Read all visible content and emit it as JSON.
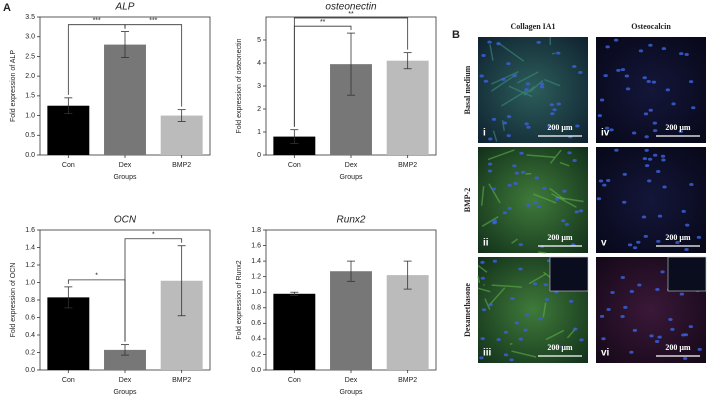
{
  "panel_a_label": "A",
  "chart_data": [
    {
      "type": "bar",
      "title": "ALP",
      "ylabel": "Fold expression of ALP",
      "xlabel": "Groups",
      "categories": [
        "Con",
        "Dex",
        "BMP2"
      ],
      "values": [
        1.25,
        2.8,
        1.0
      ],
      "errors": [
        0.2,
        0.33,
        0.15
      ],
      "colors": [
        "#000000",
        "#777777",
        "#bbbbbb"
      ],
      "ylim": [
        0,
        3.5
      ],
      "yticks": [
        {
          "value": 0,
          "label": "0.0"
        },
        0.5,
        {
          "value": 1,
          "label": "1.0"
        },
        1.5,
        {
          "value": 2,
          "label": "2.0"
        },
        2.5,
        {
          "value": 3,
          "label": "3.0"
        },
        3.5
      ],
      "significance": [
        {
          "between": [
            "Con",
            "Dex"
          ],
          "label": "***"
        },
        {
          "between": [
            "Dex",
            "BMP2"
          ],
          "label": "***"
        }
      ]
    },
    {
      "type": "bar",
      "title": "osteonectin",
      "ylabel": "Fold expression of osteonectin",
      "xlabel": "Groups",
      "categories": [
        "Con",
        "Dex",
        "BMP2"
      ],
      "values": [
        0.8,
        3.95,
        4.1
      ],
      "errors": [
        0.3,
        1.35,
        0.35
      ],
      "colors": [
        "#000000",
        "#777777",
        "#bbbbbb"
      ],
      "ylim": [
        0,
        6
      ],
      "yticks": [
        0,
        1,
        2,
        3,
        4,
        5
      ],
      "significance": [
        {
          "between": [
            "Con",
            "Dex"
          ],
          "label": "**"
        },
        {
          "between": [
            "Con",
            "BMP2"
          ],
          "label": "**"
        }
      ]
    },
    {
      "type": "bar",
      "title": "OCN",
      "ylabel": "Fold expression of OCN",
      "xlabel": "Groups",
      "categories": [
        "Con",
        "Dex",
        "BMP2"
      ],
      "values": [
        0.83,
        0.23,
        1.02
      ],
      "errors": [
        0.12,
        0.06,
        0.4
      ],
      "colors": [
        "#000000",
        "#777777",
        "#bbbbbb"
      ],
      "ylim": [
        0,
        1.6
      ],
      "yticks": [
        {
          "value": 0,
          "label": "0.0"
        },
        0.2,
        0.4,
        0.6,
        0.8,
        {
          "value": 1,
          "label": "1.0"
        },
        1.2,
        1.4,
        1.6
      ],
      "significance": [
        {
          "between": [
            "Con",
            "Dex"
          ],
          "label": "*"
        },
        {
          "between": [
            "Dex",
            "BMP2"
          ],
          "label": "*"
        }
      ]
    },
    {
      "type": "bar",
      "title": "Runx2",
      "ylabel": "Fold expression of Runx2",
      "xlabel": "Groups",
      "categories": [
        "Con",
        "Dex",
        "BMP2"
      ],
      "values": [
        0.98,
        1.27,
        1.22
      ],
      "errors": [
        0.02,
        0.13,
        0.18
      ],
      "colors": [
        "#000000",
        "#777777",
        "#bbbbbb"
      ],
      "ylim": [
        0,
        1.8
      ],
      "yticks": [
        {
          "value": 0,
          "label": "0.0"
        },
        0.2,
        0.4,
        0.6,
        0.8,
        {
          "value": 1,
          "label": "1.0"
        },
        1.2,
        1.4,
        1.6,
        1.8
      ],
      "significance": []
    }
  ],
  "panel_b": {
    "label": "B",
    "columns": [
      "Collagen IA1",
      "Osteocalcin"
    ],
    "rows": [
      "Basal medium",
      "BMP-2",
      "Dexamethasone"
    ],
    "panels": [
      [
        "i",
        "iv"
      ],
      [
        "ii",
        "v"
      ],
      [
        "iii",
        "vi"
      ]
    ],
    "scale_bar": "200 μm"
  }
}
